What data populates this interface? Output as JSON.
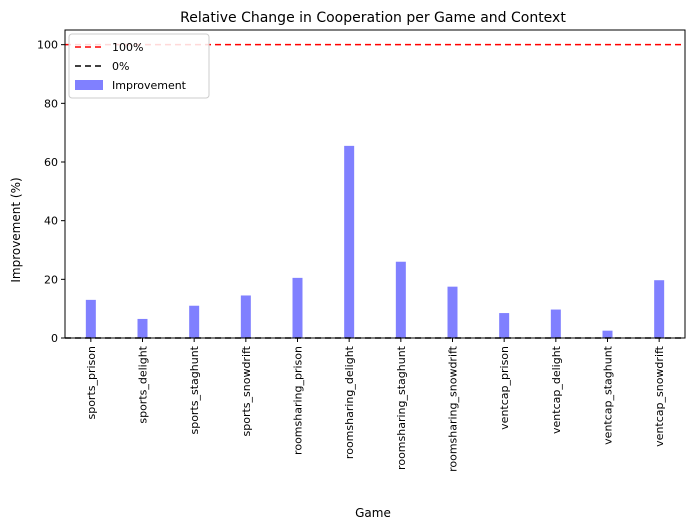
{
  "chart_data": {
    "type": "bar",
    "title": "Relative Change in Cooperation per Game and Context",
    "xlabel": "Game",
    "ylabel": "Improvement (%)",
    "categories": [
      "sports_prison",
      "sports_delight",
      "sports_staghunt",
      "sports_snowdrift",
      "roomsharing_prison",
      "roomsharing_delight",
      "roomsharing_staghunt",
      "roomsharing_snowdrift",
      "ventcap_prison",
      "ventcap_delight",
      "ventcap_staghunt",
      "ventcap_snowdrift"
    ],
    "series": [
      {
        "name": "Improvement",
        "values": [
          13.0,
          6.5,
          11.0,
          14.5,
          20.5,
          65.5,
          26.0,
          17.5,
          8.5,
          9.7,
          2.5,
          19.7
        ],
        "color": "#8080ff"
      }
    ],
    "reference_lines": [
      {
        "name": "100%",
        "y": 100,
        "color": "#ff0000",
        "style": "dashed"
      },
      {
        "name": "0%",
        "y": 0,
        "color": "#000000",
        "style": "dashed"
      }
    ],
    "ylim": [
      0,
      105
    ],
    "yticks": [
      0,
      20,
      40,
      60,
      80,
      100
    ],
    "grid": false,
    "legend": "top-left"
  }
}
